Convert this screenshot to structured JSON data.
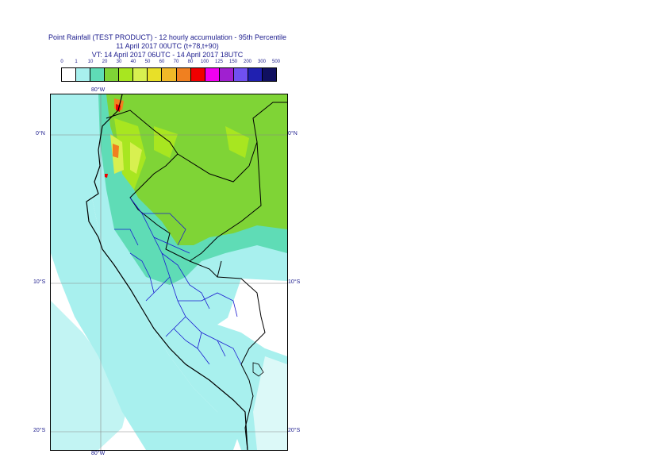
{
  "title": {
    "line1": "Point Rainfall (TEST PRODUCT) - 12 hourly accumulation - 95th Percentile",
    "line2": "11 April 2017 00UTC (t+78,t+90)",
    "line3": "VT: 14 April 2017 06UTC - 14 April 2017 18UTC"
  },
  "legend": {
    "thresholds": [
      "0",
      "1",
      "10",
      "20",
      "30",
      "40",
      "50",
      "60",
      "70",
      "80",
      "100",
      "125",
      "150",
      "200",
      "300",
      "500"
    ],
    "colors": [
      "#ffffff",
      "#a8f0ee",
      "#5fdcb6",
      "#7fd436",
      "#a8e620",
      "#d8f050",
      "#e8e028",
      "#f0b828",
      "#f08020",
      "#f00000",
      "#f000f0",
      "#a020d0",
      "#7050f0",
      "#2020b0",
      "#101060"
    ]
  },
  "map": {
    "lon_labels": [
      "80°W",
      "80°W"
    ],
    "lat_labels": {
      "left": [
        "0°N",
        "10°S",
        "20°S"
      ],
      "right": [
        "0°N",
        "10°S",
        "20°S"
      ]
    }
  }
}
